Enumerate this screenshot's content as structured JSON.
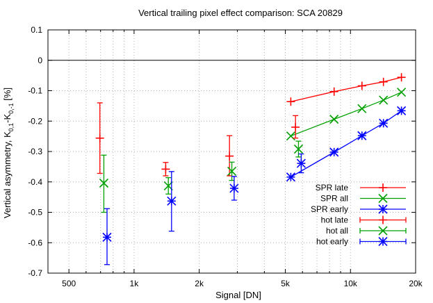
{
  "chart_data": {
    "type": "scatter",
    "title": "Vertical trailing pixel effect comparison: SCA 20829",
    "xlabel": "Signal [DN]",
    "ylabel": "Vertical asymmetry, K",
    "ylabel_parts": [
      "Vertical asymmetry, K",
      "0,1",
      "-K",
      "0,-1",
      " [%]"
    ],
    "xscale": "log",
    "xlim": [
      400,
      20000
    ],
    "ylim": [
      -0.7,
      0.1
    ],
    "xticks": [
      500,
      1000,
      2000,
      5000,
      10000,
      20000
    ],
    "xtick_labels": [
      "500",
      "1k",
      "2k",
      "5k",
      "10k",
      "20k"
    ],
    "yticks": [
      0.1,
      0,
      -0.1,
      -0.2,
      -0.3,
      -0.4,
      -0.5,
      -0.6,
      -0.7
    ],
    "ytick_labels": [
      "0.1",
      "0",
      "-0.1",
      "-0.2",
      "-0.3",
      "-0.4",
      "-0.5",
      "-0.6",
      "-0.7"
    ],
    "grid": true,
    "legend_position": "bottom-right",
    "series": [
      {
        "name": "SPR late",
        "color": "#ff0000",
        "marker": "plus",
        "kind": "line",
        "points": [
          [
            5300,
            -0.136
          ],
          [
            8400,
            -0.103
          ],
          [
            11300,
            -0.084
          ],
          [
            14200,
            -0.071
          ],
          [
            17200,
            -0.056
          ]
        ]
      },
      {
        "name": "SPR all",
        "color": "#00a000",
        "marker": "x",
        "kind": "line",
        "points": [
          [
            5300,
            -0.249
          ],
          [
            8400,
            -0.194
          ],
          [
            11300,
            -0.159
          ],
          [
            14200,
            -0.131
          ],
          [
            17200,
            -0.105
          ]
        ]
      },
      {
        "name": "SPR early",
        "color": "#0000ff",
        "marker": "star",
        "kind": "line",
        "points": [
          [
            5300,
            -0.384
          ],
          [
            8400,
            -0.302
          ],
          [
            11300,
            -0.248
          ],
          [
            14200,
            -0.207
          ],
          [
            17200,
            -0.166
          ]
        ]
      },
      {
        "name": "hot late",
        "color": "#ff0000",
        "marker": "plus",
        "kind": "errorbar",
        "points": [
          [
            695,
            -0.256,
            -0.372,
            -0.14
          ],
          [
            1400,
            -0.358,
            -0.38,
            -0.336
          ],
          [
            2760,
            -0.315,
            -0.38,
            -0.248
          ],
          [
            5570,
            -0.22,
            -0.256,
            -0.182
          ]
        ]
      },
      {
        "name": "hot all",
        "color": "#00a000",
        "marker": "x",
        "kind": "errorbar",
        "points": [
          [
            725,
            -0.404,
            -0.5,
            -0.312
          ],
          [
            1440,
            -0.413,
            -0.44,
            -0.386
          ],
          [
            2830,
            -0.365,
            -0.395,
            -0.335
          ],
          [
            5750,
            -0.292,
            -0.318,
            -0.266
          ]
        ]
      },
      {
        "name": "hot early",
        "color": "#0000ff",
        "marker": "star",
        "kind": "errorbar",
        "points": [
          [
            750,
            -0.582,
            -0.672,
            -0.488
          ],
          [
            1490,
            -0.463,
            -0.562,
            -0.366
          ],
          [
            2900,
            -0.421,
            -0.46,
            -0.382
          ],
          [
            5920,
            -0.339,
            -0.37,
            -0.308
          ]
        ]
      }
    ]
  }
}
